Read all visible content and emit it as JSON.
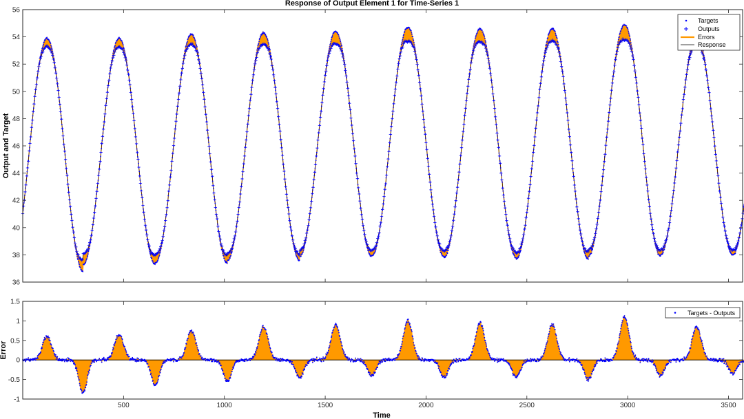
{
  "chart_data": [
    {
      "type": "line",
      "title": "Response of Output Element 1 for Time-Series 1",
      "xlabel": "",
      "ylabel": "Output and Target",
      "xlim": [
        0,
        3570
      ],
      "ylim": [
        36,
        56
      ],
      "yticks": [
        36,
        38,
        40,
        42,
        44,
        46,
        48,
        50,
        52,
        54,
        56
      ],
      "xticks": [
        500,
        1000,
        1500,
        2000,
        2500,
        3000,
        3500
      ],
      "grid": false,
      "legend_position": "top-right",
      "signal": {
        "description": "sinusoidal temperature-like signal",
        "period": 358,
        "first_peak_x": 120,
        "start_value": 40.8,
        "peaks": [
          53.9,
          53.9,
          54.2,
          54.3,
          54.4,
          54.7,
          54.6,
          54.6,
          54.9,
          54.2
        ],
        "troughs": [
          36.8,
          37.3,
          37.4,
          37.6,
          37.9,
          37.9,
          37.8,
          37.7,
          37.9,
          38.0
        ]
      },
      "series": [
        {
          "name": "Targets",
          "marker": "dot",
          "color": "#0000ff"
        },
        {
          "name": "Outputs",
          "marker": "plus",
          "color": "#0000ff"
        },
        {
          "name": "Errors",
          "style": "line",
          "color": "#ff9900"
        },
        {
          "name": "Response",
          "style": "line",
          "color": "#000000"
        }
      ]
    },
    {
      "type": "area",
      "title": "",
      "xlabel": "Time",
      "ylabel": "Error",
      "xlim": [
        0,
        3570
      ],
      "ylim": [
        -1,
        1.5
      ],
      "yticks": [
        -1,
        -0.5,
        0,
        0.5,
        1,
        1.5
      ],
      "ytick_labels": [
        "-1",
        "-0.5",
        "0",
        "0.5",
        "1",
        "1.5"
      ],
      "xticks": [
        500,
        1000,
        1500,
        2000,
        2500,
        3000,
        3500
      ],
      "grid": false,
      "legend_position": "top-right",
      "error_peaks": [
        0.6,
        0.65,
        0.75,
        0.85,
        0.9,
        1.0,
        0.95,
        0.9,
        1.1,
        0.85
      ],
      "error_troughs": [
        -0.85,
        -0.65,
        -0.55,
        -0.45,
        -0.4,
        -0.45,
        -0.45,
        -0.5,
        -0.4,
        -0.35
      ],
      "series": [
        {
          "name": "Targets - Outputs",
          "marker": "dot",
          "color": "#0000ff",
          "fill": "#ff9900"
        }
      ]
    }
  ]
}
